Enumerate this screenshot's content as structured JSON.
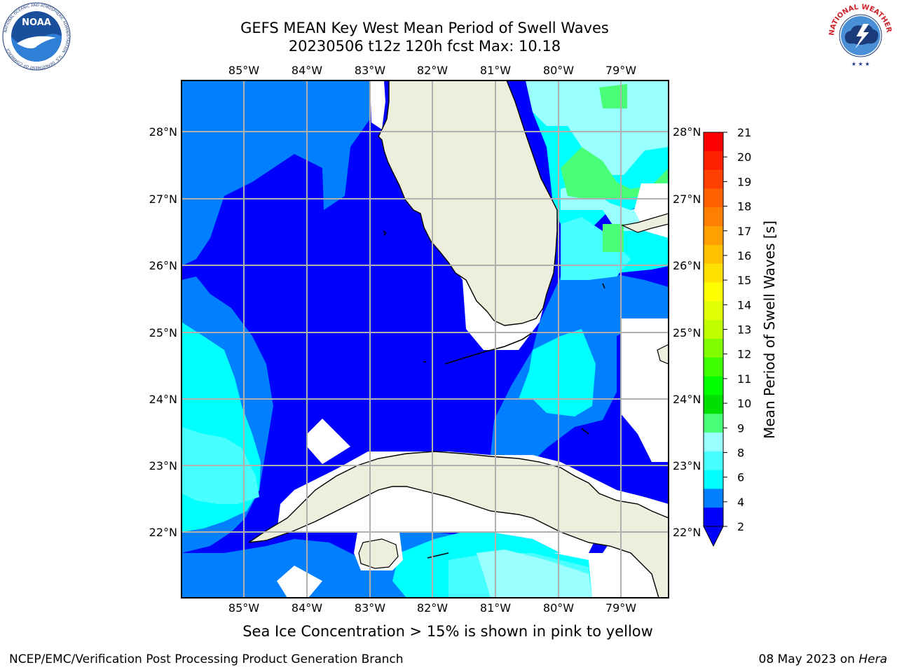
{
  "title": {
    "line1": "GEFS MEAN Key West Mean Period of Swell Waves",
    "line2": "20230506 t12z 120h fcst   Max: 10.18"
  },
  "logos": {
    "left": {
      "name": "noaa-logo",
      "text": "NOAA",
      "ring_text": "NATIONAL OCEANIC AND ATMOSPHERIC ADMINISTRATION · U.S. DEPARTMENT OF COMMERCE"
    },
    "right": {
      "name": "nws-logo",
      "ring_text": "NATIONAL WEATHER SERVICE"
    }
  },
  "map": {
    "lon_ticks": [
      "85°W",
      "84°W",
      "83°W",
      "82°W",
      "81°W",
      "80°W",
      "79°W"
    ],
    "lat_ticks": [
      "28°N",
      "27°N",
      "26°N",
      "25°N",
      "24°N",
      "23°N",
      "22°N"
    ],
    "extent": {
      "lon": [
        -86.0,
        -78.25
      ],
      "lat": [
        21.0,
        28.75
      ]
    },
    "colors": {
      "land": "#eeeedd",
      "coast": "#000000",
      "grid": "#b0b0b0",
      "p2_4": "#0000ff",
      "p4_6": "#0080ff",
      "p6_7": "#00ffff",
      "p7_8": "#48ffff",
      "p8_9": "#99ffff",
      "p9_10": "#48ff77"
    }
  },
  "colorbar": {
    "label": "Mean Period of Swell Waves [s]",
    "ticks": [
      "21",
      "20",
      "19",
      "18",
      "17",
      "16",
      "15",
      "14",
      "13",
      "12",
      "11",
      "10",
      "9",
      "8",
      "6",
      "4",
      "2"
    ],
    "colors_top_to_bottom": [
      "#ff0000",
      "#ff2000",
      "#ff4000",
      "#ff6000",
      "#ff8000",
      "#ffa000",
      "#ffc000",
      "#ffe000",
      "#ffff00",
      "#e0ff00",
      "#c0ff00",
      "#80ff00",
      "#40ff00",
      "#00ff00",
      "#00e000",
      "#48ff77",
      "#99ffff",
      "#48ffff",
      "#00ffff",
      "#0080ff",
      "#0000ff"
    ],
    "under_color": "#0000ff"
  },
  "note": "Sea Ice Concentration > 15% is shown in pink to yellow",
  "footer": {
    "left": "NCEP/EMC/Verification Post Processing Product Generation Branch",
    "right_prefix": "08 May 2023 on ",
    "right_host": "Hera"
  }
}
